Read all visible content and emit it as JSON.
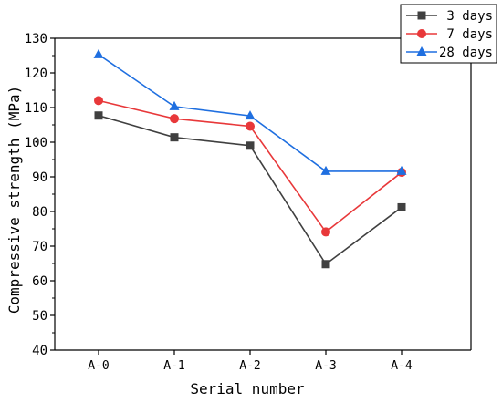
{
  "chart_data": {
    "type": "line",
    "title": "",
    "xlabel": "Serial number",
    "ylabel": "Compressive strength (MPa)",
    "categories": [
      "A-0",
      "A-1",
      "A-2",
      "A-3",
      "A-4"
    ],
    "ylim": [
      40,
      130
    ],
    "yticks": [
      40,
      50,
      60,
      70,
      80,
      90,
      100,
      110,
      120,
      130
    ],
    "grid": false,
    "legend_position": "top-right",
    "series": [
      {
        "name": "3 days",
        "values": [
          107.7,
          101.4,
          99.0,
          64.8,
          81.2
        ],
        "color": "#404040",
        "marker": "square"
      },
      {
        "name": "7 days",
        "values": [
          112.0,
          106.8,
          104.6,
          74.1,
          91.3
        ],
        "color": "#e8383a",
        "marker": "circle"
      },
      {
        "name": "28 days",
        "values": [
          125.3,
          110.3,
          107.6,
          91.6,
          91.6
        ],
        "color": "#1f6fe0",
        "marker": "triangle"
      }
    ]
  }
}
